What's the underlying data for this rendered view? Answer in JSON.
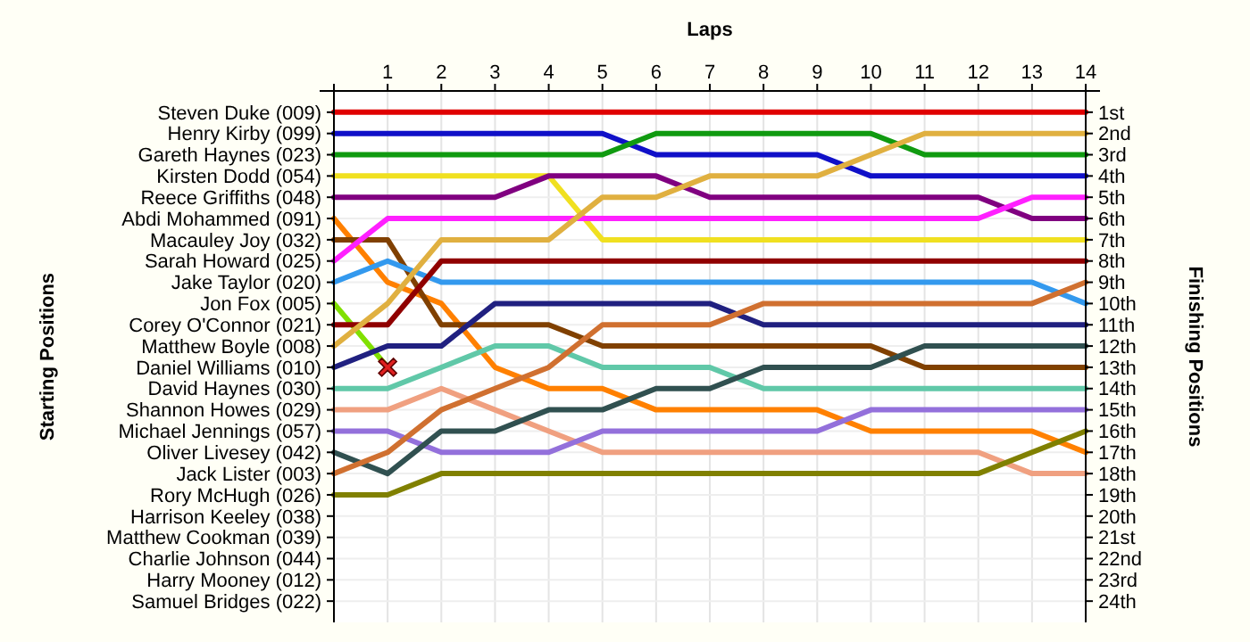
{
  "chart_data": {
    "type": "line",
    "xlabel": "Laps",
    "ylabel": "Finishing Positions",
    "x": [
      0,
      1,
      2,
      3,
      4,
      5,
      6,
      7,
      8,
      9,
      10,
      11,
      12,
      13,
      14
    ],
    "xlim": [
      0,
      14
    ],
    "xticks": [
      1,
      2,
      3,
      4,
      5,
      6,
      7,
      8,
      9,
      10,
      11,
      12,
      13,
      14
    ],
    "ylim": [
      25,
      0
    ],
    "yticks": [
      {
        "value": 1,
        "label": "1st"
      },
      {
        "value": 2,
        "label": "2nd"
      },
      {
        "value": 3,
        "label": "3rd"
      },
      {
        "value": 4,
        "label": "4th"
      },
      {
        "value": 5,
        "label": "5th"
      },
      {
        "value": 6,
        "label": "6th"
      },
      {
        "value": 7,
        "label": "7th"
      },
      {
        "value": 8,
        "label": "8th"
      },
      {
        "value": 9,
        "label": "9th"
      },
      {
        "value": 10,
        "label": "10th"
      },
      {
        "value": 11,
        "label": "11th"
      },
      {
        "value": 12,
        "label": "12th"
      },
      {
        "value": 13,
        "label": "13th"
      },
      {
        "value": 14,
        "label": "14th"
      },
      {
        "value": 15,
        "label": "15th"
      },
      {
        "value": 16,
        "label": "16th"
      },
      {
        "value": 17,
        "label": "17th"
      },
      {
        "value": 18,
        "label": "18th"
      },
      {
        "value": 19,
        "label": "19th"
      },
      {
        "value": 20,
        "label": "20th"
      },
      {
        "value": 21,
        "label": "21st"
      },
      {
        "value": 22,
        "label": "22nd"
      },
      {
        "value": 23,
        "label": "23rd"
      },
      {
        "value": 24,
        "label": "24th"
      }
    ],
    "annotations": [
      "Starting Positions",
      "Steven Duke (009)",
      "Henry Kirby (099)",
      "Gareth Haynes (023)",
      "Kirsten Dodd (054)",
      "Reece Griffiths (048)",
      "Abdi Mohammed (091)",
      "Macauley Joy (032)",
      "Sarah Howard (025)",
      "Jake Taylor (020)",
      "Jon Fox (005)",
      "Corey O'Connor (021)",
      "Matthew Boyle (008)",
      "Daniel Williams (010)",
      "David Haynes (030)",
      "Shannon Howes (029)",
      "Michael Jennings (057)",
      "Oliver Livesey (042)",
      "Jack Lister (003)",
      "Rory McHugh (026)",
      "Harrison Keeley (038)",
      "Matthew Cookman (039)",
      "Charlie Johnson (044)",
      "Harry Mooney (012)",
      "Samuel Bridges (022)"
    ],
    "grid": true,
    "marker": "none",
    "line_style": "solid",
    "series": [
      {
        "color": "#e00000",
        "values": [
          1,
          1,
          1,
          1,
          1,
          1,
          1,
          1,
          1,
          1,
          1,
          1,
          1,
          1,
          1
        ]
      },
      {
        "color": "#1010c8",
        "values": [
          2,
          2,
          2,
          2,
          2,
          2,
          3,
          3,
          3,
          3,
          4,
          4,
          4,
          4,
          4
        ]
      },
      {
        "color": "#109a10",
        "values": [
          3,
          3,
          3,
          3,
          3,
          3,
          2,
          2,
          2,
          2,
          2,
          3,
          3,
          3,
          3
        ]
      },
      {
        "color": "#f0e020",
        "values": [
          4,
          4,
          4,
          4,
          4,
          7,
          7,
          7,
          7,
          7,
          7,
          7,
          7,
          7,
          7
        ]
      },
      {
        "color": "#800080",
        "values": [
          5,
          5,
          5,
          5,
          4,
          4,
          4,
          5,
          5,
          5,
          5,
          5,
          5,
          6,
          6
        ]
      },
      {
        "color": "#ff8000",
        "values": [
          6,
          9,
          10,
          13,
          14,
          14,
          15,
          15,
          15,
          15,
          16,
          16,
          16,
          16,
          17
        ]
      },
      {
        "color": "#804000",
        "values": [
          7,
          7,
          11,
          11,
          11,
          12,
          12,
          12,
          12,
          12,
          12,
          13,
          13,
          13,
          13
        ]
      },
      {
        "color": "#ff20ff",
        "values": [
          8,
          6,
          6,
          6,
          6,
          6,
          6,
          6,
          6,
          6,
          6,
          6,
          6,
          5,
          5
        ]
      },
      {
        "color": "#3399ee",
        "values": [
          9,
          8,
          9,
          9,
          9,
          9,
          9,
          9,
          9,
          9,
          9,
          9,
          9,
          9,
          10
        ]
      },
      {
        "color": "#80e000",
        "values": [
          10,
          13,
          null,
          null,
          null,
          null,
          null,
          null,
          null,
          null,
          null,
          null,
          null,
          null,
          null
        ]
      },
      {
        "color": "#900000",
        "values": [
          11,
          11,
          8,
          8,
          8,
          8,
          8,
          8,
          8,
          8,
          8,
          8,
          8,
          8,
          8
        ]
      },
      {
        "color": "#e0b040",
        "values": [
          12,
          10,
          7,
          7,
          7,
          5,
          5,
          4,
          4,
          4,
          3,
          2,
          2,
          2,
          2
        ]
      },
      {
        "color": "#202080",
        "values": [
          13,
          12,
          12,
          10,
          10,
          10,
          10,
          10,
          11,
          11,
          11,
          11,
          11,
          11,
          11
        ]
      },
      {
        "color": "#60c8a8",
        "values": [
          14,
          14,
          13,
          12,
          12,
          13,
          13,
          13,
          14,
          14,
          14,
          14,
          14,
          14,
          14
        ]
      },
      {
        "color": "#f0a080",
        "values": [
          15,
          15,
          14,
          15,
          16,
          17,
          17,
          17,
          17,
          17,
          17,
          17,
          17,
          18,
          18
        ]
      },
      {
        "color": "#9370db",
        "values": [
          16,
          16,
          17,
          17,
          17,
          16,
          16,
          16,
          16,
          16,
          15,
          15,
          15,
          15,
          15
        ]
      },
      {
        "color": "#305050",
        "values": [
          17,
          18,
          16,
          16,
          15,
          15,
          14,
          14,
          13,
          13,
          13,
          12,
          12,
          12,
          12
        ]
      },
      {
        "color": "#d07030",
        "values": [
          18,
          17,
          15,
          14,
          13,
          11,
          11,
          11,
          10,
          10,
          10,
          10,
          10,
          10,
          9
        ]
      },
      {
        "color": "#808000",
        "values": [
          19,
          19,
          18,
          18,
          18,
          18,
          18,
          18,
          18,
          18,
          18,
          18,
          18,
          17,
          16
        ]
      },
      {
        "type": "scatter",
        "marker": "cross",
        "color": "#e02020",
        "x": [
          1
        ],
        "values": [
          13
        ]
      }
    ]
  }
}
